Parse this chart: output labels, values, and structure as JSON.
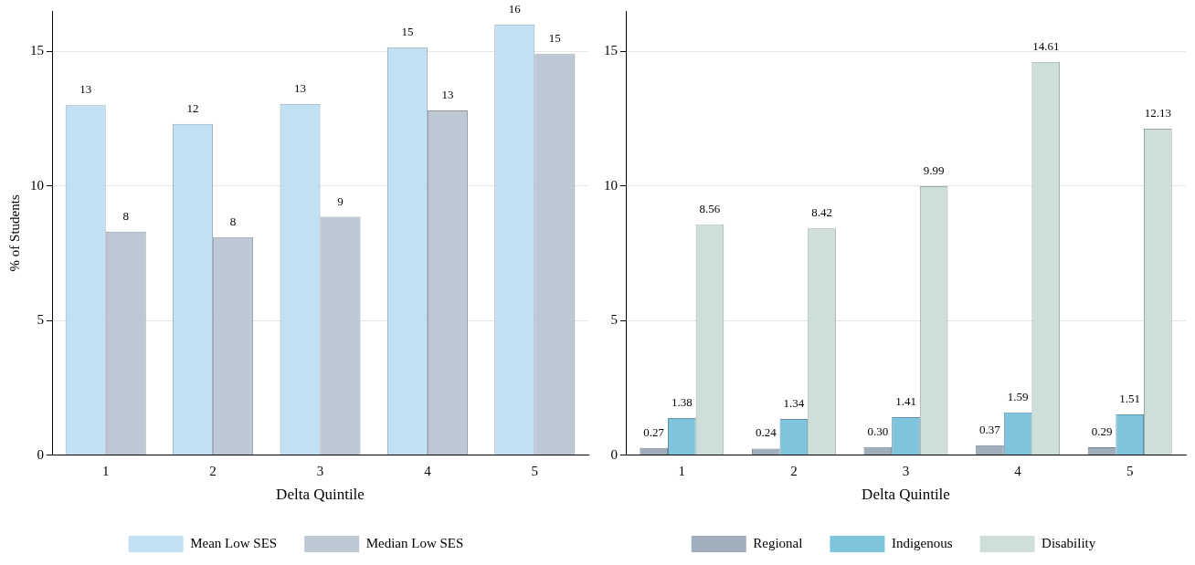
{
  "chart_data": [
    {
      "type": "bar",
      "xlabel": "Delta Quintile",
      "ylabel": "% of Students",
      "categories": [
        "1",
        "2",
        "3",
        "4",
        "5"
      ],
      "series": [
        {
          "name": "Mean Low SES",
          "color": "#c2e0f4",
          "values": [
            13.0,
            12.3,
            13.05,
            15.15,
            16.0
          ],
          "value_labels": [
            "13",
            "12",
            "13",
            "15",
            "16"
          ]
        },
        {
          "name": "Median Low SES",
          "color": "#bdc8d4",
          "values": [
            8.3,
            8.1,
            8.85,
            12.8,
            14.9
          ],
          "value_labels": [
            "8",
            "8",
            "9",
            "13",
            "15"
          ]
        }
      ],
      "ylim": [
        0,
        16.5
      ],
      "yticks": [
        0,
        5,
        10,
        15
      ],
      "grid": "y",
      "legend": "bottom"
    },
    {
      "type": "bar",
      "xlabel": "Delta Quintile",
      "categories": [
        "1",
        "2",
        "3",
        "4",
        "5"
      ],
      "series": [
        {
          "name": "Regional",
          "color": "#a0aebb",
          "values": [
            0.27,
            0.24,
            0.3,
            0.37,
            0.29
          ],
          "value_labels": [
            "0.27",
            "0.24",
            "0.30",
            "0.37",
            "0.29"
          ]
        },
        {
          "name": "Indigenous",
          "color": "#7ec4dc",
          "values": [
            1.38,
            1.34,
            1.41,
            1.59,
            1.51
          ],
          "value_labels": [
            "1.38",
            "1.34",
            "1.41",
            "1.59",
            "1.51"
          ]
        },
        {
          "name": "Disability",
          "color": "#cddedb",
          "values": [
            8.56,
            8.42,
            9.99,
            14.61,
            12.13
          ],
          "value_labels": [
            "8.56",
            "8.42",
            "9.99",
            "14.61",
            "12.13"
          ]
        }
      ],
      "ylim": [
        0,
        16.5
      ],
      "yticks": [
        0,
        5,
        10,
        15
      ],
      "grid": "y",
      "legend": "bottom"
    }
  ]
}
